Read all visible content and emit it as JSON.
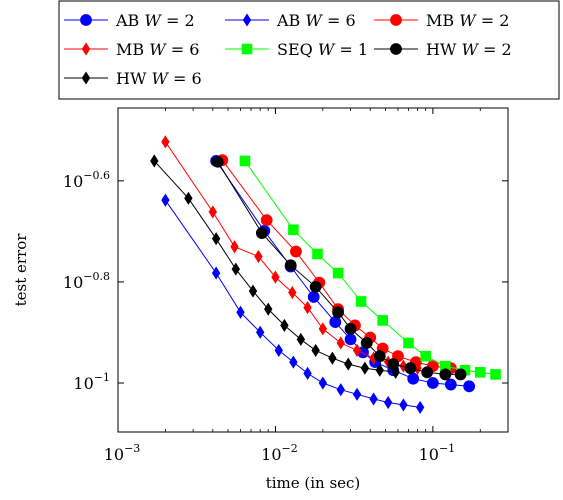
{
  "chart_data": {
    "type": "line",
    "xscale": "log",
    "yscale": "log",
    "xlim": [
      0.001,
      0.3
    ],
    "ylim": [
      0.08,
      0.35
    ],
    "xlabel": "time (in sec)",
    "ylabel": "test error",
    "x_ticks": [
      0.001,
      0.01,
      0.1
    ],
    "x_tick_labels": [
      {
        "base": "10",
        "exp": "−3"
      },
      {
        "base": "10",
        "exp": "−2"
      },
      {
        "base": "10",
        "exp": "−1"
      }
    ],
    "y_ticks": [
      0.25119,
      0.15849,
      0.1
    ],
    "y_tick_labels": [
      {
        "base": "10",
        "exp": "−0.6"
      },
      {
        "base": "10",
        "exp": "−0.8"
      },
      {
        "base": "10",
        "exp": "−1"
      }
    ],
    "grid": false,
    "legend_position": "top-outside",
    "legend_rows": [
      [
        0,
        1,
        2
      ],
      [
        3,
        4,
        5
      ],
      [
        6
      ]
    ],
    "series": [
      {
        "name": "AB",
        "W": "2",
        "color": "#0000ff",
        "marker": "circle",
        "x": [
          0.0042,
          0.0085,
          0.0125,
          0.0175,
          0.024,
          0.03,
          0.036,
          0.043,
          0.056,
          0.075,
          0.1,
          0.13,
          0.17
        ],
        "y": [
          0.275,
          0.2,
          0.17,
          0.148,
          0.132,
          0.122,
          0.115,
          0.11,
          0.106,
          0.102,
          0.1,
          0.0993,
          0.0985
        ]
      },
      {
        "name": "AB",
        "W": "6",
        "color": "#0000ff",
        "marker": "diamond",
        "x": [
          0.002,
          0.0042,
          0.006,
          0.008,
          0.0105,
          0.013,
          0.016,
          0.02,
          0.026,
          0.033,
          0.042,
          0.052,
          0.065,
          0.083
        ],
        "y": [
          0.23,
          0.165,
          0.138,
          0.126,
          0.116,
          0.11,
          0.1045,
          0.1,
          0.097,
          0.095,
          0.093,
          0.0915,
          0.0905,
          0.0895
        ]
      },
      {
        "name": "MB",
        "W": "2",
        "color": "#ff0000",
        "marker": "circle",
        "x": [
          0.0046,
          0.0088,
          0.0135,
          0.019,
          0.025,
          0.032,
          0.04,
          0.048,
          0.06,
          0.078,
          0.1,
          0.13
        ],
        "y": [
          0.276,
          0.21,
          0.182,
          0.158,
          0.14,
          0.13,
          0.123,
          0.117,
          0.113,
          0.11,
          0.108,
          0.107
        ]
      },
      {
        "name": "MB",
        "W": "6",
        "color": "#ff0000",
        "marker": "diamond",
        "x": [
          0.002,
          0.004,
          0.0055,
          0.0078,
          0.01,
          0.0128,
          0.016,
          0.02,
          0.026,
          0.033,
          0.042,
          0.052,
          0.065,
          0.08
        ],
        "y": [
          0.3,
          0.218,
          0.186,
          0.178,
          0.162,
          0.151,
          0.141,
          0.128,
          0.12,
          0.116,
          0.112,
          0.11,
          0.108,
          0.107
        ]
      },
      {
        "name": "SEQ",
        "W": "1",
        "color": "#00ff00",
        "marker": "square",
        "x": [
          0.0064,
          0.013,
          0.0185,
          0.025,
          0.035,
          0.048,
          0.07,
          0.09,
          0.12,
          0.16,
          0.2,
          0.25
        ],
        "y": [
          0.275,
          0.201,
          0.18,
          0.165,
          0.145,
          0.133,
          0.12,
          0.113,
          0.108,
          0.106,
          0.105,
          0.104
        ]
      },
      {
        "name": "HW",
        "W": "2",
        "color": "#000000",
        "marker": "circle",
        "x": [
          0.0043,
          0.0082,
          0.0125,
          0.018,
          0.025,
          0.03,
          0.038,
          0.046,
          0.056,
          0.072,
          0.092,
          0.12,
          0.15
        ],
        "y": [
          0.274,
          0.198,
          0.171,
          0.155,
          0.138,
          0.128,
          0.12,
          0.113,
          0.109,
          0.107,
          0.105,
          0.104,
          0.104
        ]
      },
      {
        "name": "HW",
        "W": "6",
        "color": "#000000",
        "marker": "diamond",
        "x": [
          0.0017,
          0.0028,
          0.0042,
          0.0056,
          0.0072,
          0.009,
          0.0114,
          0.0145,
          0.018,
          0.023,
          0.029,
          0.037,
          0.046,
          0.058
        ],
        "y": [
          0.275,
          0.232,
          0.193,
          0.168,
          0.152,
          0.14,
          0.13,
          0.122,
          0.116,
          0.112,
          0.109,
          0.107,
          0.106,
          0.105
        ]
      }
    ]
  }
}
